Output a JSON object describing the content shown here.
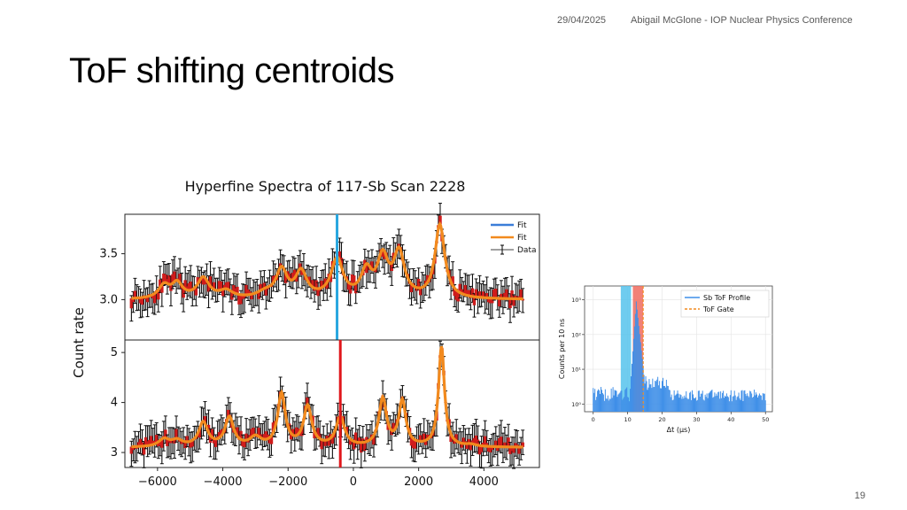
{
  "header": {
    "date": "29/04/2025",
    "conference": "Abigail McGlone - IOP Nuclear Physics Conference"
  },
  "slide": {
    "title": "ToF shifting centroids",
    "page_number": "19"
  },
  "colors": {
    "fit_blue": "#3b7dd8",
    "fit_orange": "#f28a1e",
    "data_red": "#d01c1c",
    "marker_cyan": "#29a7df",
    "marker_red": "#e0161b",
    "gate_cyan": "#56c3ec",
    "gate_red": "#ee6b5f",
    "hist_blue": "#3f8fe8",
    "gate_line": "#f28a1e"
  },
  "chart_data": [
    {
      "type": "line",
      "title": "Hyperfine Spectra of 117-Sb Scan 2228",
      "ylabel": "Count rate",
      "xlim": [
        -7000,
        5700
      ],
      "x_ticks": [
        -6000,
        -4000,
        -2000,
        0,
        2000,
        4000
      ],
      "x_tick_labels": [
        "−6000",
        "−4000",
        "−2000",
        "0",
        "2000",
        "4000"
      ],
      "legend": {
        "placement": "top-right",
        "entries": [
          "Fit",
          "Fit",
          "Data"
        ]
      },
      "panels": [
        {
          "ylim": [
            2.56,
            3.93
          ],
          "y_ticks": [
            3.0,
            3.5
          ],
          "y_tick_labels": [
            "3.0",
            "3.5"
          ],
          "marker_x": -500,
          "baseline": 3.0,
          "peaks": [
            {
              "x": -5800,
              "h": 0.14,
              "w": 200
            },
            {
              "x": -5400,
              "h": 0.16,
              "w": 200
            },
            {
              "x": -4600,
              "h": 0.22,
              "w": 220
            },
            {
              "x": -3900,
              "h": 0.08,
              "w": 250
            },
            {
              "x": -2700,
              "h": 0.06,
              "w": 300
            },
            {
              "x": -2200,
              "h": 0.3,
              "w": 200
            },
            {
              "x": -1600,
              "h": 0.28,
              "w": 210
            },
            {
              "x": -500,
              "h": 0.42,
              "w": 220
            },
            {
              "x": 400,
              "h": 0.28,
              "w": 200
            },
            {
              "x": 900,
              "h": 0.42,
              "w": 200
            },
            {
              "x": 1400,
              "h": 0.48,
              "w": 200
            },
            {
              "x": 2650,
              "h": 0.8,
              "w": 180
            }
          ]
        },
        {
          "ylim": [
            2.7,
            5.25
          ],
          "y_ticks": [
            3,
            4,
            5
          ],
          "y_tick_labels": [
            "3",
            "4",
            "5"
          ],
          "marker_x": -400,
          "baseline": 3.1,
          "peaks": [
            {
              "x": -5800,
              "h": 0.15,
              "w": 200
            },
            {
              "x": -5400,
              "h": 0.12,
              "w": 200
            },
            {
              "x": -4600,
              "h": 0.48,
              "w": 170
            },
            {
              "x": -3800,
              "h": 0.58,
              "w": 160
            },
            {
              "x": -3000,
              "h": 0.18,
              "w": 200
            },
            {
              "x": -2200,
              "h": 1.05,
              "w": 140
            },
            {
              "x": -1400,
              "h": 0.8,
              "w": 150
            },
            {
              "x": -400,
              "h": 0.58,
              "w": 160
            },
            {
              "x": 900,
              "h": 0.95,
              "w": 140
            },
            {
              "x": 1500,
              "h": 0.9,
              "w": 130
            },
            {
              "x": 2700,
              "h": 2.0,
              "w": 110
            },
            {
              "x": 3600,
              "h": 0.04,
              "w": 200
            }
          ]
        }
      ]
    },
    {
      "type": "bar",
      "ylabel": "Counts per 10 ns",
      "xlabel": "Δt (μs)",
      "xlim": [
        -2.5,
        52
      ],
      "x_ticks": [
        0,
        10,
        20,
        30,
        40,
        50
      ],
      "x_tick_labels": [
        "0",
        "10",
        "20",
        "30",
        "40",
        "50"
      ],
      "y_scale": "log",
      "ylim": [
        0.6,
        2500
      ],
      "y_ticks": [
        1,
        10,
        100,
        1000
      ],
      "y_tick_labels": [
        "10⁰",
        "10¹",
        "10²",
        "10³"
      ],
      "gates": [
        {
          "x0": 8.0,
          "x1": 11.0,
          "color_key": "gate_cyan"
        },
        {
          "x0": 11.5,
          "x1": 14.5,
          "color_key": "gate_red"
        }
      ],
      "gate_line_x": 14.5,
      "profile": {
        "baseline": 1.2,
        "rise_start": 10.5,
        "peak_x": 12.5,
        "peak": 900,
        "fall_end": 15.0,
        "tail": 4,
        "tail_end": 22
      },
      "legend": {
        "placement": "top-right",
        "entries": [
          "Sb ToF Profile",
          "ToF Gate"
        ]
      }
    }
  ]
}
